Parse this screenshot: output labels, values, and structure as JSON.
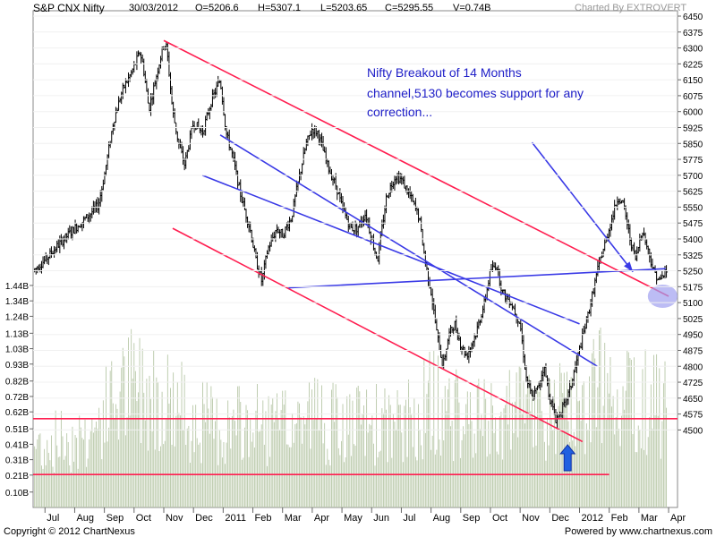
{
  "header": {
    "symbol": "S&P CNX Nifty",
    "date": "30/03/2012",
    "open": "O=5206.6",
    "high": "H=5307.1",
    "low": "L=5203.65",
    "close": "C=5295.55",
    "volume": "V=0.74B",
    "charted_by": "Charted By EXTROVERT"
  },
  "footer": {
    "copyright": "Copyright © 2012 ChartNexus",
    "powered_by": "Powered by www.chartnexus.com"
  },
  "annotation": {
    "lines": [
      "Nifty Breakout of 14 Months",
      "channel,5130 becomes support for any",
      "correction..."
    ]
  },
  "colors": {
    "background": "#ffffff",
    "price_bars": "#000000",
    "volume_bars": "#b8c8a8",
    "red_lines": "#ff1e50",
    "blue_lines": "#3a3ae6",
    "text_blue": "#2020c8",
    "circle_fill": "#a0a0f0"
  },
  "chart_data": {
    "type": "ohlc_bar_with_volume",
    "price_axis": {
      "ticks": [
        4500,
        4575,
        4650,
        4725,
        4800,
        4875,
        4950,
        5025,
        5100,
        5175,
        5250,
        5325,
        5400,
        5475,
        5550,
        5625,
        5700,
        5775,
        5850,
        5925,
        6000,
        6075,
        6150,
        6225,
        6300,
        6375,
        6450
      ],
      "tick_labels": [
        "4500",
        "4575",
        "4650",
        "4725",
        "4800",
        "4875",
        "4950",
        "5025",
        "5100",
        "5175",
        "5250",
        "5325",
        "5400",
        "5475",
        "5550",
        "5625",
        "5700",
        "5775",
        "5850",
        "5925",
        "6000",
        "6075",
        "6150",
        "6225",
        "6300",
        "6375",
        "6450"
      ],
      "range": [
        4430,
        6450
      ]
    },
    "volume_axis": {
      "tick_labels": [
        "0.10B",
        "0.21B",
        "0.31B",
        "0.41B",
        "0.51B",
        "0.62B",
        "0.72B",
        "0.82B",
        "0.93B",
        "1.03B",
        "1.13B",
        "1.24B",
        "1.34B",
        "1.44B"
      ],
      "tick_values": [
        0.1,
        0.21,
        0.31,
        0.41,
        0.51,
        0.62,
        0.72,
        0.82,
        0.93,
        1.03,
        1.13,
        1.24,
        1.34,
        1.44
      ],
      "range": [
        0,
        1.55
      ]
    },
    "x_axis": {
      "labels": [
        "Jul",
        "Aug",
        "Sep",
        "Oct",
        "Nov",
        "Dec",
        "2011",
        "Feb",
        "Mar",
        "Apr",
        "May",
        "Jun",
        "Jul",
        "Aug",
        "Sep",
        "Oct",
        "Nov",
        "Dec",
        "2012",
        "Feb",
        "Mar",
        "Apr"
      ],
      "label_months": [
        0,
        1,
        2,
        3,
        4,
        5,
        6,
        7,
        8,
        9,
        10,
        11,
        12,
        13,
        14,
        15,
        16,
        17,
        18,
        19,
        20,
        21
      ],
      "range_months": [
        -0.4,
        21.3
      ]
    },
    "price_anchors": [
      [
        -0.4,
        5250
      ],
      [
        0.0,
        5300
      ],
      [
        0.5,
        5380
      ],
      [
        1.0,
        5450
      ],
      [
        1.4,
        5500
      ],
      [
        1.8,
        5560
      ],
      [
        2.0,
        5700
      ],
      [
        2.3,
        5950
      ],
      [
        2.6,
        6100
      ],
      [
        2.9,
        6180
      ],
      [
        3.2,
        6280
      ],
      [
        3.3,
        6220
      ],
      [
        3.5,
        6010
      ],
      [
        3.8,
        6200
      ],
      [
        4.0,
        6320
      ],
      [
        4.1,
        6300
      ],
      [
        4.3,
        6000
      ],
      [
        4.5,
        5850
      ],
      [
        4.7,
        5750
      ],
      [
        5.0,
        5950
      ],
      [
        5.3,
        5900
      ],
      [
        5.6,
        6050
      ],
      [
        5.9,
        6150
      ],
      [
        6.1,
        5900
      ],
      [
        6.3,
        5800
      ],
      [
        6.6,
        5600
      ],
      [
        6.9,
        5450
      ],
      [
        7.1,
        5300
      ],
      [
        7.3,
        5200
      ],
      [
        7.5,
        5350
      ],
      [
        7.8,
        5450
      ],
      [
        8.0,
        5420
      ],
      [
        8.3,
        5500
      ],
      [
        8.5,
        5650
      ],
      [
        8.8,
        5850
      ],
      [
        9.0,
        5920
      ],
      [
        9.2,
        5900
      ],
      [
        9.5,
        5750
      ],
      [
        9.8,
        5650
      ],
      [
        10.0,
        5550
      ],
      [
        10.3,
        5450
      ],
      [
        10.5,
        5450
      ],
      [
        10.8,
        5520
      ],
      [
        11.0,
        5400
      ],
      [
        11.2,
        5300
      ],
      [
        11.5,
        5600
      ],
      [
        11.8,
        5700
      ],
      [
        12.0,
        5680
      ],
      [
        12.3,
        5600
      ],
      [
        12.6,
        5500
      ],
      [
        12.8,
        5300
      ],
      [
        13.0,
        5150
      ],
      [
        13.2,
        4950
      ],
      [
        13.4,
        4800
      ],
      [
        13.6,
        4950
      ],
      [
        13.8,
        5000
      ],
      [
        14.0,
        4900
      ],
      [
        14.2,
        4850
      ],
      [
        14.5,
        4950
      ],
      [
        14.8,
        5100
      ],
      [
        15.0,
        5250
      ],
      [
        15.2,
        5280
      ],
      [
        15.4,
        5150
      ],
      [
        15.7,
        5100
      ],
      [
        16.0,
        5000
      ],
      [
        16.2,
        4750
      ],
      [
        16.4,
        4650
      ],
      [
        16.6,
        4700
      ],
      [
        16.8,
        4800
      ],
      [
        17.0,
        4650
      ],
      [
        17.2,
        4550
      ],
      [
        17.5,
        4620
      ],
      [
        17.7,
        4700
      ],
      [
        18.0,
        4880
      ],
      [
        18.3,
        5050
      ],
      [
        18.6,
        5250
      ],
      [
        18.9,
        5400
      ],
      [
        19.1,
        5500
      ],
      [
        19.3,
        5600
      ],
      [
        19.5,
        5550
      ],
      [
        19.7,
        5400
      ],
      [
        19.9,
        5300
      ],
      [
        20.1,
        5450
      ],
      [
        20.3,
        5350
      ],
      [
        20.5,
        5250
      ],
      [
        20.7,
        5200
      ],
      [
        20.9,
        5250
      ]
    ],
    "volume_anchors": [
      [
        -0.4,
        0.55
      ],
      [
        1.5,
        0.65
      ],
      [
        2.3,
        0.95
      ],
      [
        3.0,
        1.1
      ],
      [
        4.0,
        1.0
      ],
      [
        5.0,
        0.8
      ],
      [
        6.0,
        0.7
      ],
      [
        7.0,
        0.75
      ],
      [
        8.0,
        0.7
      ],
      [
        9.0,
        0.85
      ],
      [
        10.0,
        0.7
      ],
      [
        11.0,
        0.75
      ],
      [
        12.0,
        0.7
      ],
      [
        13.0,
        0.95
      ],
      [
        14.0,
        0.8
      ],
      [
        15.0,
        0.75
      ],
      [
        16.0,
        0.85
      ],
      [
        17.0,
        0.8
      ],
      [
        18.0,
        0.95
      ],
      [
        19.0,
        1.15
      ],
      [
        20.0,
        1.0
      ],
      [
        21.0,
        0.85
      ]
    ],
    "lines": [
      {
        "color": "red",
        "from": [
          4.0,
          6335
        ],
        "to": [
          21.0,
          5130
        ]
      },
      {
        "color": "red",
        "from": [
          4.3,
          5450
        ],
        "to": [
          18.1,
          4445
        ]
      },
      {
        "color": "red",
        "from": [
          -0.4,
          4553
        ],
        "to": [
          21.3,
          4553
        ]
      },
      {
        "color": "red",
        "from": [
          -0.4,
          4290
        ],
        "to": [
          19.0,
          4290
        ]
      },
      {
        "color": "blue",
        "from": [
          5.9,
          5890
        ],
        "to": [
          18.6,
          4800
        ]
      },
      {
        "color": "blue",
        "from": [
          5.3,
          5700
        ],
        "to": [
          18.0,
          5000
        ]
      },
      {
        "color": "blue",
        "from": [
          8.2,
          5170
        ],
        "to": [
          20.9,
          5260
        ]
      },
      {
        "color": "blue",
        "from": [
          16.4,
          5855
        ],
        "to": [
          19.8,
          5245
        ]
      }
    ],
    "circle": {
      "center": [
        20.8,
        5130
      ],
      "rx_months": 0.5,
      "ry_price": 55
    },
    "up_arrow": {
      "month": 17.6
    }
  }
}
